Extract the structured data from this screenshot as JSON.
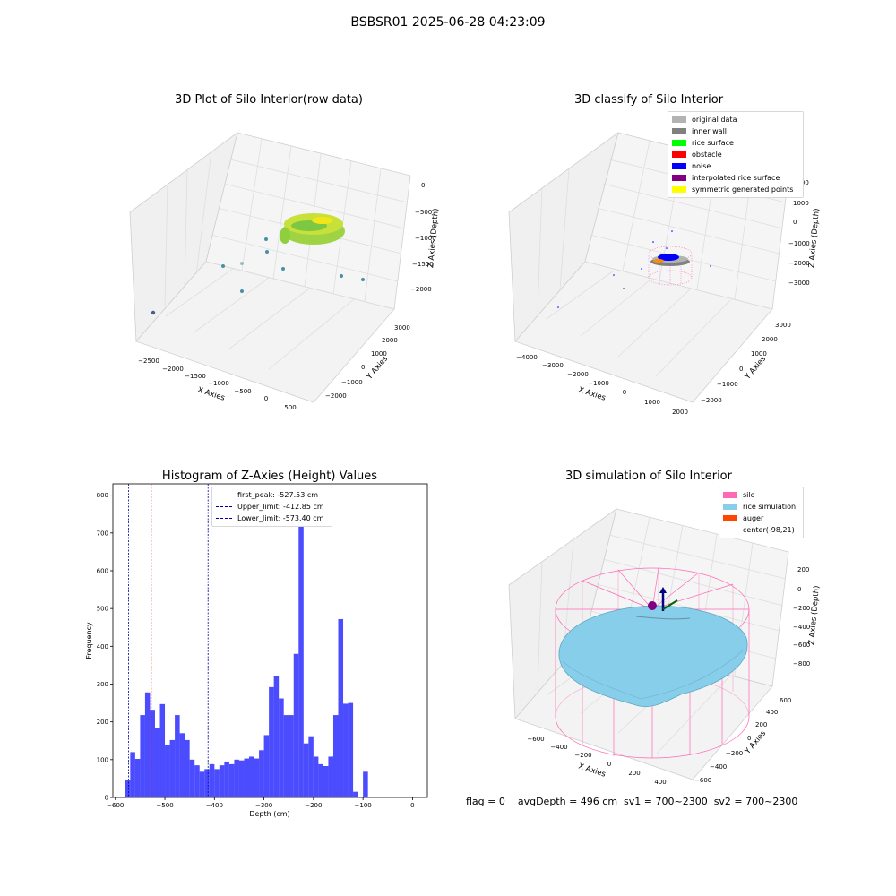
{
  "figure": {
    "suptitle": "BSBSR01 2025-06-28 04:23:09",
    "bottom_info": "flag = 0    avgDepth = 496 cm  sv1 = 700~2300  sv2 = 700~2300"
  },
  "plots": {
    "raw": {
      "title": "3D Plot of Silo Interior(row data)",
      "xlabel": "X Axies",
      "ylabel": "Y Axies",
      "zlabel": "Z Axies (Depth)",
      "xticks": [
        "−2500",
        "−2000",
        "−1500",
        "−1000",
        "−500",
        "0",
        "500"
      ],
      "yticks": [
        "−2000",
        "−1000",
        "0",
        "1000",
        "2000",
        "3000"
      ],
      "zticks": [
        "0",
        "−500",
        "−1000",
        "−1500",
        "−2000"
      ]
    },
    "classify": {
      "title": "3D classify of Silo Interior",
      "xlabel": "X Axies",
      "ylabel": "Y Axies",
      "zlabel": "Z Axies (Depth)",
      "xticks": [
        "−4000",
        "−3000",
        "−2000",
        "−1000",
        "0",
        "1000",
        "2000"
      ],
      "yticks": [
        "−2000",
        "−1000",
        "0",
        "1000",
        "2000",
        "3000"
      ],
      "zticks": [
        "2000",
        "1000",
        "0",
        "−1000",
        "−2000",
        "−3000"
      ],
      "legend": [
        {
          "label": "original data",
          "color": "#b3b3b3"
        },
        {
          "label": "inner wall",
          "color": "#808080"
        },
        {
          "label": "rice surface",
          "color": "#00ff00"
        },
        {
          "label": "obstacle",
          "color": "#ff0000"
        },
        {
          "label": "noise",
          "color": "#0000ff"
        },
        {
          "label": "interpolated rice surface",
          "color": "#800080"
        },
        {
          "label": "symmetric generated points",
          "color": "#ffff00"
        }
      ]
    },
    "simulation": {
      "title": "3D simulation of Silo Interior",
      "xlabel": "X Axies",
      "ylabel": "Y Axies",
      "zlabel": "Z Axies (Depth)",
      "xticks": [
        "−600",
        "−400",
        "−200",
        "0",
        "200",
        "400"
      ],
      "yticks": [
        "−600",
        "−400",
        "−200",
        "0",
        "200",
        "400",
        "600"
      ],
      "zticks": [
        "200",
        "0",
        "−200",
        "−400",
        "−600",
        "−800"
      ],
      "legend": [
        {
          "label": "silo",
          "color": "#ff69b4"
        },
        {
          "label": "rice simulation",
          "color": "#87ceeb"
        },
        {
          "label": "auger",
          "color": "#ff4500"
        },
        {
          "label": "center(-98,21)",
          "color": ""
        }
      ]
    }
  },
  "chart_data": {
    "type": "bar",
    "title": "Histogram of Z-Axies (Height) Values",
    "xlabel": "Depth (cm)",
    "ylabel": "Frequency",
    "xlim": [
      -605,
      30
    ],
    "ylim": [
      0,
      830
    ],
    "xticks": [
      -600,
      -500,
      -400,
      -300,
      -200,
      -100,
      0
    ],
    "yticks": [
      0,
      100,
      200,
      300,
      400,
      500,
      600,
      700,
      800
    ],
    "bin_width": 10,
    "bin_start": -580,
    "bar_color": "#0000ff",
    "values": [
      45,
      120,
      102,
      218,
      278,
      232,
      185,
      247,
      140,
      152,
      218,
      170,
      152,
      100,
      85,
      68,
      75,
      88,
      75,
      85,
      95,
      88,
      100,
      98,
      103,
      108,
      103,
      125,
      165,
      292,
      322,
      262,
      218,
      218,
      380,
      790,
      143,
      162,
      108,
      88,
      83,
      108,
      218,
      472,
      248,
      250,
      15,
      0,
      68
    ],
    "lines": [
      {
        "label": "first_peak: -527.53 cm",
        "x": -527.53,
        "color": "#ff0000"
      },
      {
        "label": "Upper_limit: -412.85 cm",
        "x": -412.85,
        "color": "#0000aa"
      },
      {
        "label": "Lower_limit: -573.40 cm",
        "x": -573.4,
        "color": "#0000aa"
      }
    ]
  }
}
